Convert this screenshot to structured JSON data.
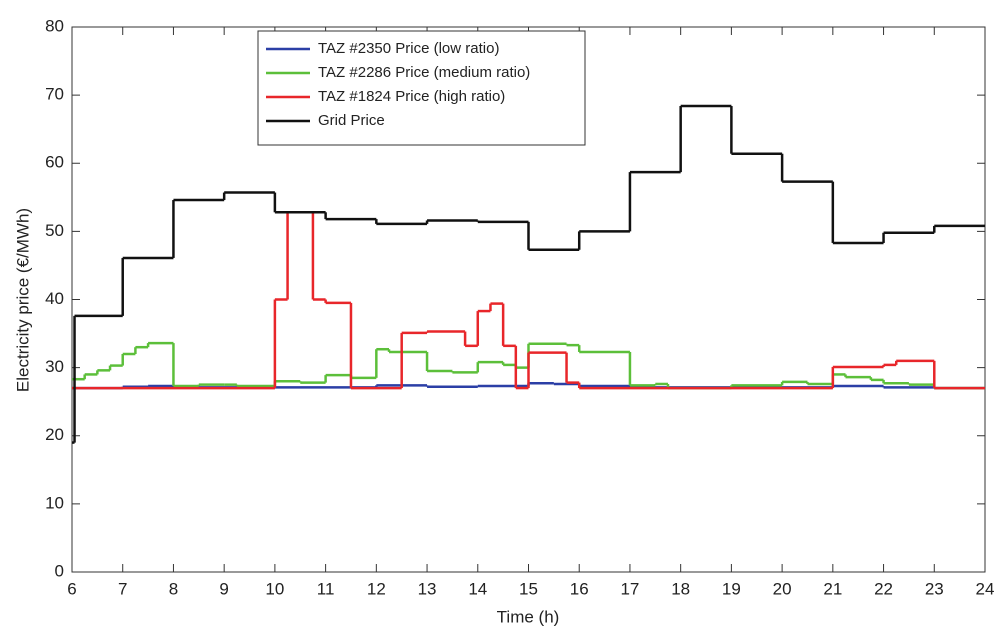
{
  "chart_data": {
    "type": "line",
    "drawstyle": "steps-post",
    "xlabel": "Time (h)",
    "ylabel": "Electricity price (€/MWh)",
    "xlim": [
      6,
      24
    ],
    "xticks": [
      6,
      7,
      8,
      9,
      10,
      11,
      12,
      13,
      14,
      15,
      16,
      17,
      18,
      19,
      20,
      21,
      22,
      23,
      24
    ],
    "ylim": [
      0,
      80
    ],
    "yticks": [
      0,
      10,
      20,
      30,
      40,
      50,
      60,
      70,
      80
    ],
    "grid": false,
    "legend": "top",
    "series": [
      {
        "name": "TAZ #2350 Price (low ratio)",
        "color": "#2b3fa6",
        "x": [
          6,
          7,
          7.5,
          8,
          12,
          13,
          14,
          15,
          15.5,
          16,
          17,
          21,
          22,
          23,
          24
        ],
        "values": [
          27.0,
          27.2,
          27.3,
          27.1,
          27.4,
          27.2,
          27.3,
          27.7,
          27.6,
          27.3,
          27.1,
          27.3,
          27.1,
          27.0,
          27.0
        ]
      },
      {
        "name": "TAZ #2286 Price (medium ratio)",
        "color": "#5cbf3a",
        "x": [
          6,
          6.25,
          6.5,
          6.75,
          7,
          7.25,
          7.5,
          8,
          8.5,
          9,
          9.25,
          10,
          10.5,
          11,
          11.5,
          12,
          12.25,
          13,
          13.5,
          14,
          14.5,
          14.75,
          15,
          15.75,
          16,
          17,
          17.5,
          17.75,
          19,
          20,
          20.5,
          21,
          21.25,
          21.75,
          22,
          22.5,
          23,
          24
        ],
        "values": [
          28.3,
          29.0,
          29.6,
          30.3,
          32.0,
          33.0,
          33.6,
          27.3,
          27.5,
          27.5,
          27.3,
          28.0,
          27.8,
          28.9,
          28.5,
          32.7,
          32.3,
          29.5,
          29.3,
          30.8,
          30.4,
          30.0,
          33.5,
          33.3,
          32.3,
          27.4,
          27.6,
          27.0,
          27.4,
          27.9,
          27.6,
          29.0,
          28.6,
          28.2,
          27.7,
          27.5,
          27.0,
          27.0
        ]
      },
      {
        "name": "TAZ #1824 Price (high ratio)",
        "color": "#e8262a",
        "x": [
          6,
          10,
          10.25,
          10.75,
          11,
          11.5,
          12.5,
          13,
          13.75,
          14,
          14.25,
          14.5,
          14.75,
          15,
          15.75,
          16,
          21,
          22,
          22.25,
          23,
          24
        ],
        "values": [
          27.0,
          40.0,
          52.8,
          40.0,
          39.5,
          27.0,
          35.1,
          35.3,
          33.2,
          38.3,
          39.4,
          33.2,
          27.0,
          32.2,
          27.8,
          27.0,
          30.1,
          30.4,
          31.0,
          27.0,
          27.0
        ]
      },
      {
        "name": "Grid Price",
        "color": "#111111",
        "x": [
          6,
          6.05,
          7,
          8,
          9,
          10,
          11,
          12,
          13,
          14,
          15,
          16,
          17,
          18,
          19,
          20,
          21,
          22,
          23,
          24
        ],
        "values": [
          19.0,
          37.6,
          46.1,
          54.6,
          55.7,
          52.8,
          51.8,
          51.1,
          51.6,
          51.4,
          47.3,
          50.0,
          58.7,
          68.4,
          61.4,
          57.3,
          48.3,
          49.8,
          50.8,
          50.8
        ]
      }
    ]
  }
}
